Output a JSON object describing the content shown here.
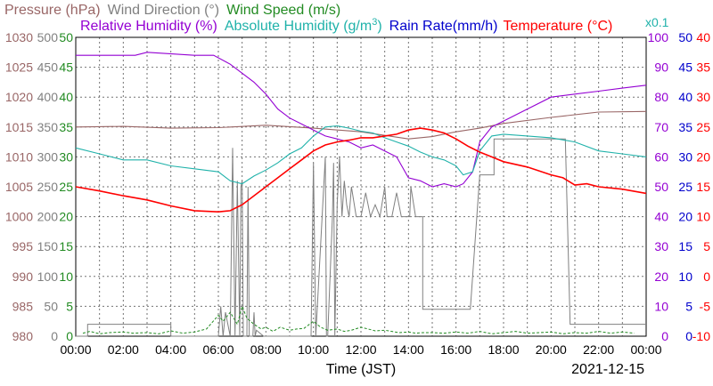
{
  "legend": {
    "pressure": "Pressure (hPa)",
    "wind_direction": "Wind Direction (°)",
    "wind_speed": "Wind Speed (m/s)",
    "humidity": "Relative Humidity (%)",
    "abs_humidity": "Absolute Humidity (g/m",
    "abs_humidity_sup": "3",
    "abs_humidity_close": ")",
    "rain_rate": "Rain Rate(mm/h)",
    "temperature": "Temperature (°C)",
    "rain_scale": "x0.1"
  },
  "colors": {
    "pressure": "#996666",
    "wind_direction": "#808080",
    "wind_speed": "#228b22",
    "humidity": "#9400d3",
    "abs_humidity": "#20b2aa",
    "rain_rate": "#0000cc",
    "temperature": "#ff0000"
  },
  "chart_data": {
    "type": "line",
    "xlabel": "Time (JST)",
    "date": "2021-12-15",
    "xlim": [
      0,
      24
    ],
    "x_ticks": [
      "00:00",
      "02:00",
      "04:00",
      "06:00",
      "08:00",
      "10:00",
      "12:00",
      "14:00",
      "16:00",
      "18:00",
      "20:00",
      "22:00",
      "00:00"
    ],
    "axes": {
      "pressure": {
        "ticks": [
          "1030",
          "1025",
          "1020",
          "1015",
          "1010",
          "1005",
          "1000",
          "995",
          "990",
          "985",
          "980"
        ],
        "ylim": [
          980,
          1030
        ]
      },
      "wind_direction": {
        "ticks": [
          "500",
          "450",
          "400",
          "350",
          "300",
          "250",
          "200",
          "150",
          "100",
          "50",
          "0"
        ],
        "ylim": [
          0,
          500
        ]
      },
      "wind_speed": {
        "ticks": [
          "50",
          "45",
          "40",
          "35",
          "30",
          "25",
          "20",
          "15",
          "10",
          "5",
          "0"
        ],
        "ylim": [
          0,
          50
        ]
      },
      "humidity": {
        "ticks": [
          "100",
          "90",
          "80",
          "70",
          "60",
          "50",
          "40",
          "30",
          "20",
          "10",
          "0"
        ],
        "ylim": [
          0,
          100
        ]
      },
      "rain_rate": {
        "ticks": [
          "50",
          "45",
          "40",
          "35",
          "30",
          "25",
          "20",
          "15",
          "10",
          "5",
          "0"
        ],
        "ylim": [
          0,
          50
        ]
      },
      "temperature": {
        "ticks": [
          "40",
          "35",
          "30",
          "25",
          "20",
          "15",
          "10",
          "5",
          "0",
          "-5",
          "-10"
        ],
        "ylim": [
          -10,
          40
        ]
      }
    },
    "series": [
      {
        "name": "Pressure (hPa)",
        "key": "pressure",
        "axis": "pressure",
        "x": [
          0,
          2,
          4,
          6,
          8,
          10,
          12,
          13,
          14,
          15,
          16,
          17,
          18,
          20,
          22,
          24
        ],
        "y": [
          1015.0,
          1015.1,
          1014.8,
          1014.9,
          1015.3,
          1014.8,
          1014.2,
          1013.6,
          1013.0,
          1013.4,
          1014.2,
          1014.8,
          1015.6,
          1016.6,
          1017.5,
          1017.6
        ]
      },
      {
        "name": "Relative Humidity (%)",
        "key": "humidity",
        "axis": "humidity",
        "x": [
          0,
          2,
          2.5,
          3,
          5,
          5.8,
          6.5,
          7,
          7.5,
          8,
          8.5,
          9,
          9.5,
          10,
          10.5,
          11,
          11.5,
          12,
          12.5,
          13,
          13.5,
          14,
          14.5,
          15,
          15.5,
          16,
          16.3,
          16.7,
          17,
          17.5,
          18,
          19,
          20,
          21,
          22,
          23,
          24
        ],
        "y": [
          94,
          94,
          94,
          95,
          94,
          94,
          91,
          88,
          85,
          81,
          76,
          73,
          71,
          69,
          67,
          66,
          65,
          63,
          64,
          62,
          60,
          53,
          52,
          50,
          51,
          50,
          51,
          55,
          65,
          70,
          72,
          76,
          80,
          81,
          82,
          83,
          84
        ]
      },
      {
        "name": "Absolute Humidity (g/m3)",
        "key": "abs_humidity",
        "axis": "wind_speed",
        "x": [
          0,
          1,
          2,
          3,
          4,
          5,
          6,
          6.5,
          7,
          7.5,
          8,
          8.5,
          9,
          9.5,
          10,
          10.5,
          11,
          11.5,
          12,
          12.5,
          13,
          13.5,
          14,
          14.5,
          15,
          15.5,
          16,
          16.3,
          16.7,
          17,
          17.5,
          18,
          19,
          20,
          21,
          22,
          23,
          24
        ],
        "y": [
          31.5,
          30.5,
          29.5,
          29.5,
          28.5,
          28.0,
          27.5,
          26.0,
          25.5,
          26.8,
          27.8,
          29.0,
          30.5,
          31.5,
          33.5,
          35.0,
          35.2,
          34.8,
          34.3,
          34.0,
          33.2,
          32.5,
          31.8,
          30.8,
          30.0,
          29.5,
          28.5,
          27.0,
          27.5,
          31.0,
          33.5,
          33.8,
          33.5,
          33.2,
          32.5,
          31.0,
          30.5,
          30.0
        ]
      },
      {
        "name": "Temperature (°C)",
        "key": "temperature",
        "axis": "temperature",
        "x": [
          0,
          1,
          2,
          3,
          4,
          5,
          6,
          6.5,
          7,
          7.5,
          8,
          8.5,
          9,
          9.5,
          10,
          10.5,
          11,
          11.5,
          12,
          12.5,
          13,
          13.5,
          14,
          14.5,
          15,
          15.5,
          16,
          16.5,
          17,
          17.5,
          18,
          19,
          20,
          20.5,
          21,
          21.5,
          22,
          23,
          24
        ],
        "y": [
          15.0,
          14.3,
          13.5,
          12.8,
          11.8,
          11.0,
          10.8,
          11.0,
          12.0,
          13.5,
          15.0,
          16.5,
          18.0,
          19.5,
          21.0,
          22.0,
          22.5,
          22.8,
          23.2,
          23.2,
          23.5,
          23.8,
          24.5,
          24.8,
          24.5,
          24.0,
          23.0,
          21.8,
          20.8,
          20.0,
          19.2,
          18.3,
          17.0,
          16.5,
          15.3,
          15.5,
          15.0,
          14.6,
          13.9
        ]
      }
    ],
    "wind_direction_steps": {
      "x": [
        0,
        0.5,
        0.5,
        4,
        4,
        6,
        6.1,
        6.2,
        6.3,
        6.5,
        6.6,
        6.7,
        6.8,
        6.9,
        6.95,
        7.0,
        7.05,
        7.1,
        7.2,
        7.25,
        7.3,
        7.35,
        7.4,
        7.45,
        7.5,
        7.55,
        7.6,
        7.9,
        8.0,
        8.1,
        8.5,
        8.6,
        8.7,
        8.9,
        9.0,
        9.05,
        9.1,
        9.2,
        9.5,
        9.55,
        9.6,
        9.9,
        10.0,
        10.1,
        10.5,
        10.55,
        10.6,
        10.8,
        10.85,
        10.9,
        11.0,
        11.1,
        11.2,
        11.3,
        11.4,
        11.5,
        11.6,
        11.8,
        12.0,
        12.2,
        12.4,
        12.6,
        12.8,
        13.0,
        13.1,
        13.3,
        13.5,
        13.7,
        14.0,
        14.05,
        14.1,
        14.3,
        14.35,
        14.6,
        14.6,
        16.6,
        16.6,
        17.0,
        17.0,
        17.6,
        17.6,
        18.0,
        18.0,
        20.6,
        20.6,
        20.8,
        20.8,
        24
      ],
      "y": [
        0,
        0,
        20,
        20,
        0,
        0,
        50,
        0,
        40,
        0,
        315,
        0,
        260,
        0,
        250,
        260,
        0,
        0,
        0,
        250,
        0,
        0,
        0,
        0,
        40,
        0,
        10,
        0,
        0,
        0,
        0,
        0,
        0,
        0,
        0,
        0,
        0,
        0,
        0,
        0,
        0,
        0,
        290,
        0,
        300,
        0,
        0,
        200,
        290,
        0,
        220,
        300,
        200,
        260,
        220,
        200,
        250,
        200,
        200,
        240,
        200,
        220,
        200,
        250,
        200,
        200,
        240,
        200,
        200,
        200,
        250,
        200,
        200,
        200,
        45,
        45,
        45,
        270,
        270,
        270,
        330,
        330,
        330,
        330,
        330,
        20,
        20,
        20
      ]
    },
    "wind_speed_marks": {
      "x": [
        0.3,
        0.6,
        1,
        1.4,
        2,
        2.4,
        3,
        3.5,
        4,
        4.5,
        5,
        5.5,
        6,
        6.2,
        6.5,
        6.8,
        7,
        7.2,
        7.5,
        7.8,
        8,
        8.3,
        8.6,
        9,
        9.3,
        9.6,
        10,
        10.3,
        10.6,
        11,
        11.3,
        11.6,
        12,
        12.3,
        12.6,
        13,
        13.3,
        13.6,
        14,
        14.3,
        14.6,
        15,
        15.5,
        16,
        16.5,
        17,
        17.5,
        18,
        18.5,
        19,
        19.5,
        20,
        20.5,
        21,
        21.5,
        22,
        22.5,
        23,
        23.5
      ],
      "y": [
        0.5,
        0.8,
        0.4,
        0.6,
        0.7,
        0.5,
        0.6,
        0.4,
        0.9,
        0.5,
        0.7,
        1.2,
        3.5,
        2.5,
        4.0,
        2.0,
        5.0,
        3.0,
        2.0,
        1.2,
        1.5,
        0.8,
        1.5,
        1.0,
        1.2,
        1.3,
        2.5,
        1.5,
        1.0,
        1.2,
        0.8,
        1.0,
        1.5,
        1.2,
        0.9,
        1.0,
        0.8,
        0.6,
        0.7,
        0.5,
        0.6,
        0.6,
        0.5,
        0.7,
        0.5,
        0.8,
        0.4,
        0.6,
        0.8,
        0.5,
        0.6,
        0.7,
        0.4,
        0.6,
        0.5,
        0.8,
        0.5,
        0.7,
        0.5
      ]
    }
  }
}
